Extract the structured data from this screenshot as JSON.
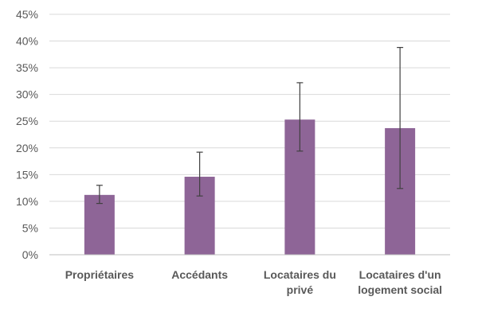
{
  "chart_data": {
    "type": "bar",
    "categories": [
      [
        "Propriétaires"
      ],
      [
        "Accédants"
      ],
      [
        "Locataires du",
        "privé"
      ],
      [
        "Locataires d'un",
        "logement social"
      ]
    ],
    "values": [
      11.2,
      14.6,
      25.3,
      23.7
    ],
    "error_low": [
      9.6,
      11.0,
      19.4,
      12.4
    ],
    "error_high": [
      13.0,
      19.2,
      32.2,
      38.8
    ],
    "ylim": [
      0,
      45
    ],
    "yticks": [
      0,
      5,
      10,
      15,
      20,
      25,
      30,
      35,
      40,
      45
    ],
    "ytick_labels": [
      "0%",
      "5%",
      "10%",
      "15%",
      "20%",
      "25%",
      "30%",
      "35%",
      "40%",
      "45%"
    ],
    "bar_color": "#8e6597",
    "grid": true,
    "title": "",
    "xlabel": "",
    "ylabel": ""
  }
}
